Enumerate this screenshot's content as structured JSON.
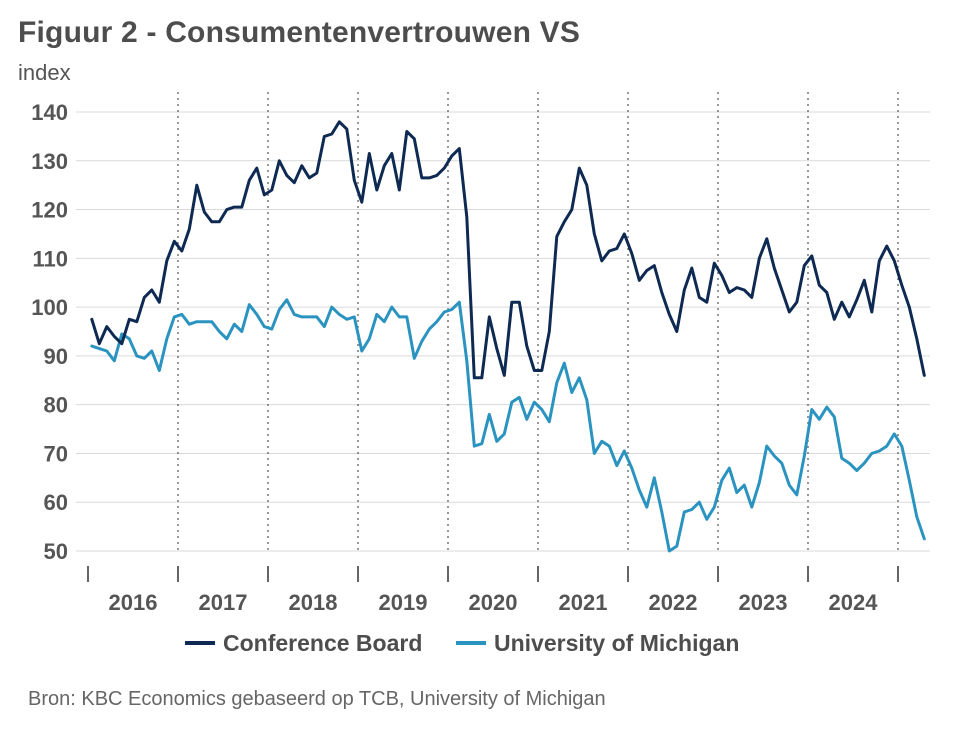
{
  "title": "Figuur 2 - Consumentenvertrouwen VS",
  "unit_label": "index",
  "source": "Bron: KBC Economics gebaseerd op TCB, University of Michigan",
  "colors": {
    "conference_board": "#0e2a52",
    "michigan": "#2b93c0",
    "grid": "#d9d9d9",
    "axis": "#333333"
  },
  "chart_data": {
    "type": "line",
    "title": "Figuur 2 - Consumentenvertrouwen VS",
    "ylabel": "index",
    "ylim": [
      50,
      140
    ],
    "yticks": [
      "140",
      "130",
      "120",
      "110",
      "100",
      "90",
      "80",
      "70",
      "60",
      "50"
    ],
    "xlabels": [
      "2016",
      "2017",
      "2018",
      "2019",
      "2020",
      "2021",
      "2022",
      "2023",
      "2024"
    ],
    "start": "2016-01",
    "frequency": "monthly",
    "legend_position": "bottom",
    "series": [
      {
        "name": "Conference Board",
        "values": [
          97.5,
          92.5,
          96,
          94,
          92.5,
          97.5,
          97,
          102,
          103.5,
          101,
          109.5,
          113.5,
          111.5,
          116,
          125,
          119.5,
          117.5,
          117.5,
          120,
          120.5,
          120.5,
          126,
          128.5,
          123,
          124,
          130,
          127,
          125.5,
          129,
          126.5,
          127.5,
          135,
          135.5,
          138,
          136.5,
          126,
          121.5,
          131.5,
          124,
          129,
          131.5,
          124,
          136,
          134.5,
          126.5,
          126.5,
          127,
          128.5,
          131,
          132.5,
          118.5,
          85.5,
          85.5,
          98,
          91.5,
          86,
          101,
          101,
          92,
          87,
          87,
          95,
          114.5,
          117.5,
          120,
          128.5,
          125,
          115,
          109.5,
          111.5,
          112,
          115,
          111,
          105.5,
          107.5,
          108.5,
          103,
          98.5,
          95,
          103.5,
          108,
          102,
          101,
          109,
          106.5,
          103,
          104,
          103.5,
          102,
          110,
          114,
          108,
          103.5,
          99,
          101,
          108.5,
          110.5,
          104.5,
          103,
          97.5,
          101,
          98,
          101.5,
          105.5,
          99,
          109.5,
          112.5,
          109.5,
          104.5,
          100,
          93.5,
          86
        ]
      },
      {
        "name": "University of Michigan",
        "values": [
          92,
          91.5,
          91,
          89,
          94.5,
          93.5,
          90,
          89.5,
          91,
          87,
          93.5,
          98,
          98.5,
          96.5,
          97,
          97,
          97,
          95,
          93.5,
          96.5,
          95,
          100.5,
          98.5,
          96,
          95.5,
          99.5,
          101.5,
          98.5,
          98,
          98,
          98,
          96,
          100,
          98.5,
          97.5,
          98,
          91,
          93.5,
          98.5,
          97,
          100,
          98,
          98,
          89.5,
          93,
          95.5,
          97,
          99,
          99.5,
          101,
          89,
          71.5,
          72,
          78,
          72.5,
          74,
          80.5,
          81.5,
          77,
          80.5,
          79,
          76.5,
          84.5,
          88.5,
          82.5,
          85.5,
          81,
          70,
          72.5,
          71.5,
          67.5,
          70.5,
          67,
          62.5,
          59,
          65,
          58,
          50,
          51,
          58,
          58.5,
          60,
          56.5,
          59,
          64.5,
          67,
          62,
          63.5,
          59,
          64,
          71.5,
          69.5,
          68,
          63.5,
          61.5,
          69.5,
          79,
          77,
          79.5,
          77.5,
          69,
          68,
          66.5,
          68,
          70,
          70.5,
          71.5,
          74,
          71.5,
          64.5,
          57,
          52.5
        ]
      }
    ]
  }
}
